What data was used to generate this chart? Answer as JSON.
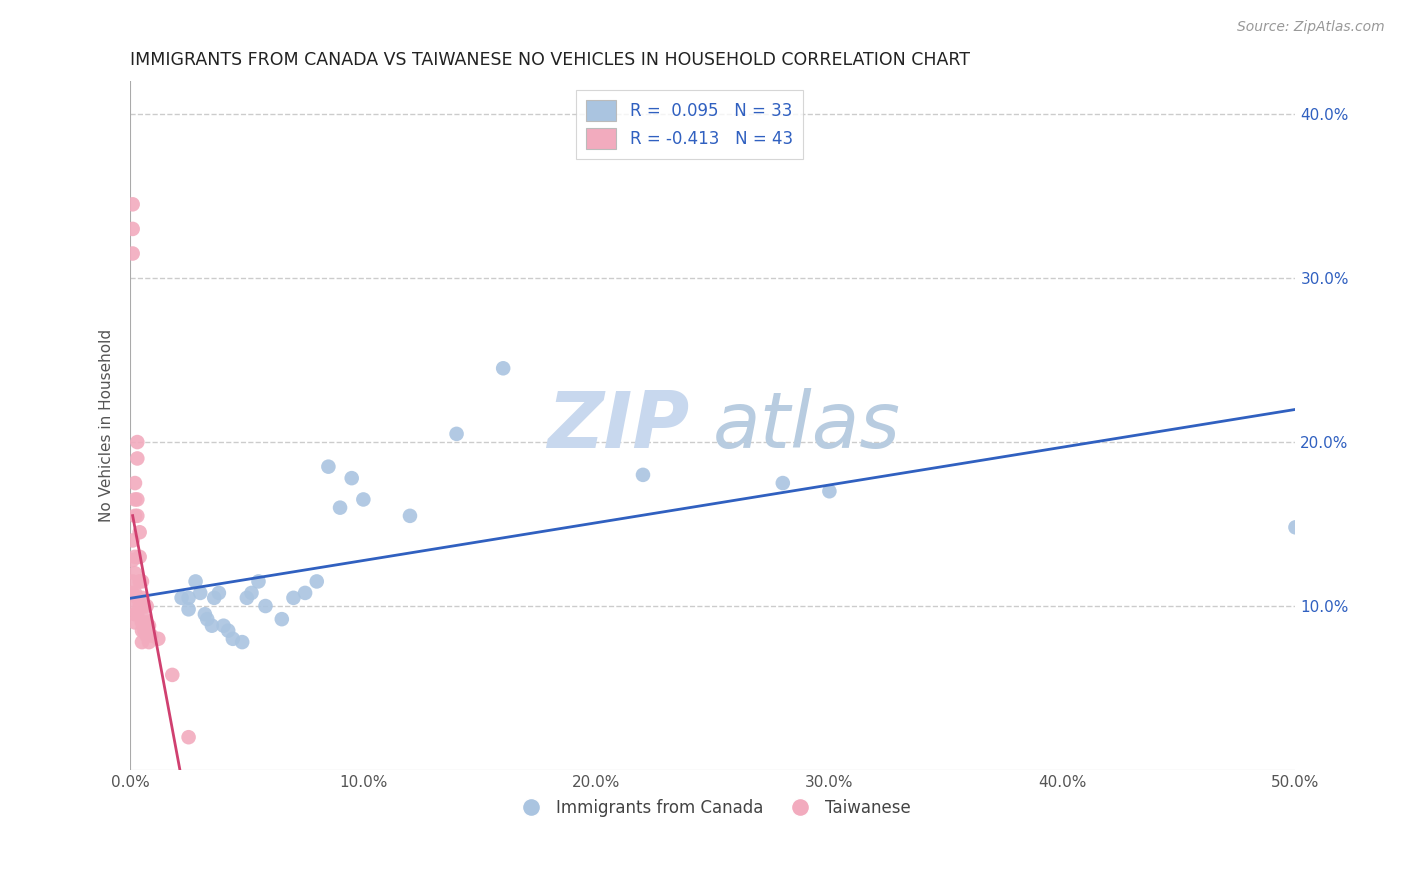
{
  "title": "IMMIGRANTS FROM CANADA VS TAIWANESE NO VEHICLES IN HOUSEHOLD CORRELATION CHART",
  "source": "Source: ZipAtlas.com",
  "ylabel": "No Vehicles in Household",
  "xlim": [
    0.0,
    0.5
  ],
  "ylim": [
    0.0,
    0.42
  ],
  "xticks": [
    0.0,
    0.1,
    0.2,
    0.3,
    0.4,
    0.5
  ],
  "yticks": [
    0.1,
    0.2,
    0.3,
    0.4
  ],
  "xticklabels": [
    "0.0%",
    "10.0%",
    "20.0%",
    "30.0%",
    "40.0%",
    "50.0%"
  ],
  "yticklabels": [
    "10.0%",
    "20.0%",
    "30.0%",
    "40.0%"
  ],
  "blue_color": "#aac4e0",
  "pink_color": "#f2abbe",
  "line_blue": "#3060c0",
  "line_pink": "#d04070",
  "legend_label_color": "#3060c0",
  "tick_color": "#3060c0",
  "background_color": "#ffffff",
  "grid_color": "#cccccc",
  "canada_x": [
    0.022,
    0.025,
    0.025,
    0.028,
    0.03,
    0.032,
    0.033,
    0.035,
    0.036,
    0.038,
    0.04,
    0.042,
    0.044,
    0.048,
    0.05,
    0.052,
    0.055,
    0.058,
    0.065,
    0.07,
    0.075,
    0.08,
    0.085,
    0.09,
    0.095,
    0.1,
    0.12,
    0.14,
    0.16,
    0.22,
    0.28,
    0.3,
    0.5
  ],
  "canada_y": [
    0.105,
    0.105,
    0.098,
    0.115,
    0.108,
    0.095,
    0.092,
    0.088,
    0.105,
    0.108,
    0.088,
    0.085,
    0.08,
    0.078,
    0.105,
    0.108,
    0.115,
    0.1,
    0.092,
    0.105,
    0.108,
    0.115,
    0.185,
    0.16,
    0.178,
    0.165,
    0.155,
    0.205,
    0.245,
    0.18,
    0.175,
    0.17,
    0.148
  ],
  "taiwanese_x": [
    0.001,
    0.001,
    0.001,
    0.001,
    0.001,
    0.001,
    0.001,
    0.002,
    0.002,
    0.002,
    0.002,
    0.002,
    0.002,
    0.002,
    0.002,
    0.002,
    0.003,
    0.003,
    0.003,
    0.003,
    0.003,
    0.003,
    0.004,
    0.004,
    0.004,
    0.004,
    0.005,
    0.005,
    0.005,
    0.005,
    0.005,
    0.006,
    0.006,
    0.006,
    0.007,
    0.007,
    0.007,
    0.008,
    0.008,
    0.009,
    0.012,
    0.018,
    0.025
  ],
  "taiwanese_y": [
    0.345,
    0.33,
    0.315,
    0.14,
    0.128,
    0.115,
    0.108,
    0.175,
    0.165,
    0.155,
    0.13,
    0.12,
    0.108,
    0.1,
    0.095,
    0.09,
    0.2,
    0.19,
    0.165,
    0.155,
    0.105,
    0.095,
    0.145,
    0.13,
    0.115,
    0.1,
    0.115,
    0.105,
    0.09,
    0.085,
    0.078,
    0.1,
    0.092,
    0.085,
    0.1,
    0.09,
    0.082,
    0.088,
    0.078,
    0.082,
    0.08,
    0.058,
    0.02
  ]
}
